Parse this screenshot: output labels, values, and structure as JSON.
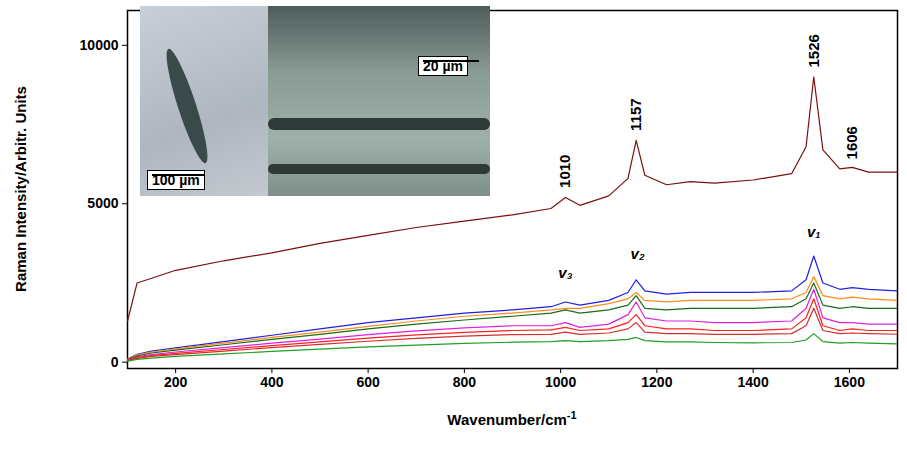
{
  "chart_data": {
    "type": "line",
    "x_label": "Wavenumber/cm-1",
    "y_label": "Raman Intensity/Arbitr. Units",
    "xlim": [
      100,
      1700
    ],
    "xticks": [
      200,
      400,
      600,
      800,
      1000,
      1200,
      1400,
      1600
    ],
    "ylim": [
      -200,
      11100
    ],
    "yticks": [
      0,
      5000,
      10000
    ],
    "x": [
      100,
      120,
      150,
      200,
      300,
      400,
      500,
      600,
      700,
      800,
      900,
      980,
      1010,
      1040,
      1100,
      1140,
      1157,
      1175,
      1220,
      1270,
      1320,
      1400,
      1480,
      1510,
      1526,
      1545,
      1580,
      1606,
      1640,
      1700
    ],
    "series": [
      {
        "color": "#7b1010",
        "values": [
          1300,
          2500,
          2650,
          2900,
          3200,
          3450,
          3750,
          4000,
          4250,
          4450,
          4650,
          4850,
          5200,
          4950,
          5250,
          5800,
          7000,
          5900,
          5600,
          5700,
          5650,
          5750,
          5950,
          6800,
          9000,
          6700,
          6100,
          6150,
          6000,
          6000
        ]
      },
      {
        "color": "#2020e0",
        "values": [
          100,
          250,
          350,
          450,
          650,
          850,
          1050,
          1250,
          1400,
          1550,
          1650,
          1750,
          1900,
          1800,
          1950,
          2200,
          2600,
          2250,
          2150,
          2200,
          2200,
          2200,
          2250,
          2600,
          3350,
          2500,
          2300,
          2350,
          2300,
          2250
        ]
      },
      {
        "color": "#ff8c1a",
        "values": [
          100,
          230,
          320,
          420,
          600,
          780,
          950,
          1130,
          1300,
          1450,
          1550,
          1650,
          1700,
          1700,
          1850,
          2000,
          2200,
          1950,
          1900,
          1950,
          1950,
          1950,
          2000,
          2200,
          2700,
          2100,
          2000,
          2050,
          2000,
          1950
        ]
      },
      {
        "color": "#1a6b1a",
        "values": [
          80,
          200,
          290,
          380,
          550,
          720,
          880,
          1050,
          1200,
          1330,
          1450,
          1550,
          1650,
          1550,
          1650,
          1800,
          2100,
          1700,
          1650,
          1700,
          1700,
          1700,
          1750,
          2000,
          2500,
          1800,
          1700,
          1750,
          1700,
          1700
        ]
      },
      {
        "color": "#e020e0",
        "values": [
          60,
          170,
          240,
          320,
          460,
          600,
          730,
          870,
          990,
          1080,
          1150,
          1150,
          1250,
          1100,
          1200,
          1500,
          1900,
          1400,
          1300,
          1300,
          1250,
          1250,
          1300,
          1700,
          2300,
          1400,
          1250,
          1250,
          1200,
          1200
        ]
      },
      {
        "color": "#ff2020",
        "values": [
          50,
          150,
          210,
          280,
          400,
          520,
          640,
          760,
          860,
          940,
          1000,
          1020,
          1100,
          1000,
          1050,
          1250,
          1500,
          1150,
          1050,
          1050,
          1000,
          1000,
          1050,
          1400,
          2000,
          1150,
          1000,
          1050,
          1000,
          1000
        ]
      },
      {
        "color": "#d03030",
        "values": [
          40,
          120,
          180,
          240,
          350,
          460,
          560,
          660,
          750,
          820,
          870,
          880,
          950,
          880,
          920,
          1050,
          1250,
          950,
          900,
          900,
          880,
          880,
          900,
          1150,
          1700,
          1000,
          900,
          920,
          900,
          880
        ]
      },
      {
        "color": "#20a020",
        "values": [
          30,
          90,
          130,
          180,
          260,
          340,
          410,
          480,
          540,
          590,
          630,
          650,
          680,
          650,
          680,
          720,
          780,
          680,
          640,
          640,
          620,
          610,
          620,
          700,
          900,
          650,
          600,
          620,
          600,
          580
        ]
      }
    ],
    "annotations": [
      {
        "text": "1010",
        "x": 1010,
        "y": 5500
      },
      {
        "text": "1157",
        "x": 1157,
        "y": 7300
      },
      {
        "text": "1526",
        "x": 1526,
        "y": 9300
      },
      {
        "text": "1606",
        "x": 1606,
        "y": 6400
      },
      {
        "text": "v₃",
        "x": 1010,
        "y": 2800
      },
      {
        "text": "v₂",
        "x": 1160,
        "y": 3400
      },
      {
        "text": "v₁",
        "x": 1526,
        "y": 4100
      }
    ],
    "inset_labels": [
      "100 µm",
      "20 µm"
    ]
  }
}
